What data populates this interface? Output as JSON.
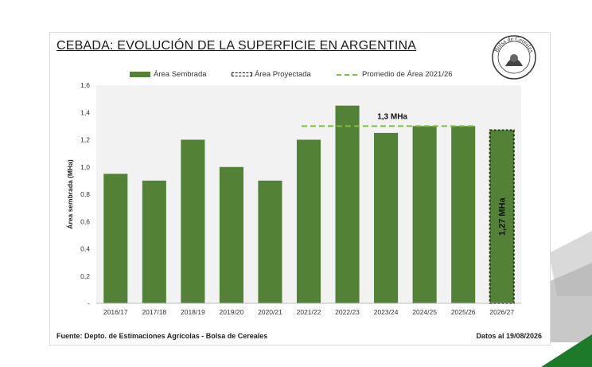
{
  "colors": {
    "bar": "#538135",
    "projected_border": "#1e3a10",
    "avg_line": "#7cbf3f",
    "plot_bg": "#f2f2f2",
    "deco_grey": "#b0b0b0",
    "deco_green": "#1d7a2b"
  },
  "logo": {
    "text": "Bolsa de Cereales",
    "icon": "bolsa-de-cereales-seal-icon"
  },
  "footer": {
    "source": "Fuente: Depto. de Estimaciones Agrícolas - Bolsa de Cereales",
    "date": "Datos al 19/08/2026"
  },
  "chart_data": {
    "type": "bar",
    "title": "CEBADA: EVOLUCIÓN DE LA SUPERFICIE EN ARGENTINA",
    "ylabel": "Área sembrada (MHa)",
    "xlabel": "",
    "ylim": [
      0,
      1.6
    ],
    "yticks": [
      "-",
      "0,2",
      "0,4",
      "0,6",
      "0,8",
      "1,0",
      "1,2",
      "1,4",
      "1,6"
    ],
    "grid": false,
    "legend_position": "top",
    "legend": [
      "Área Sembrada",
      "Área Proyectada",
      "Promedio de Área 2021/26"
    ],
    "categories": [
      "2016/17",
      "2017/18",
      "2018/19",
      "2019/20",
      "2020/21",
      "2021/22",
      "2022/23",
      "2023/24",
      "2024/25",
      "2025/26",
      "2026/27"
    ],
    "values": [
      0.95,
      0.9,
      1.2,
      1.0,
      0.9,
      1.2,
      1.45,
      1.25,
      1.3,
      1.3,
      1.27
    ],
    "projected_index": 10,
    "average": {
      "value": 1.3,
      "from": "2021/22",
      "to": "2025/26",
      "label": "1,3  MHa"
    },
    "projected_label": "1,27  MHa"
  }
}
